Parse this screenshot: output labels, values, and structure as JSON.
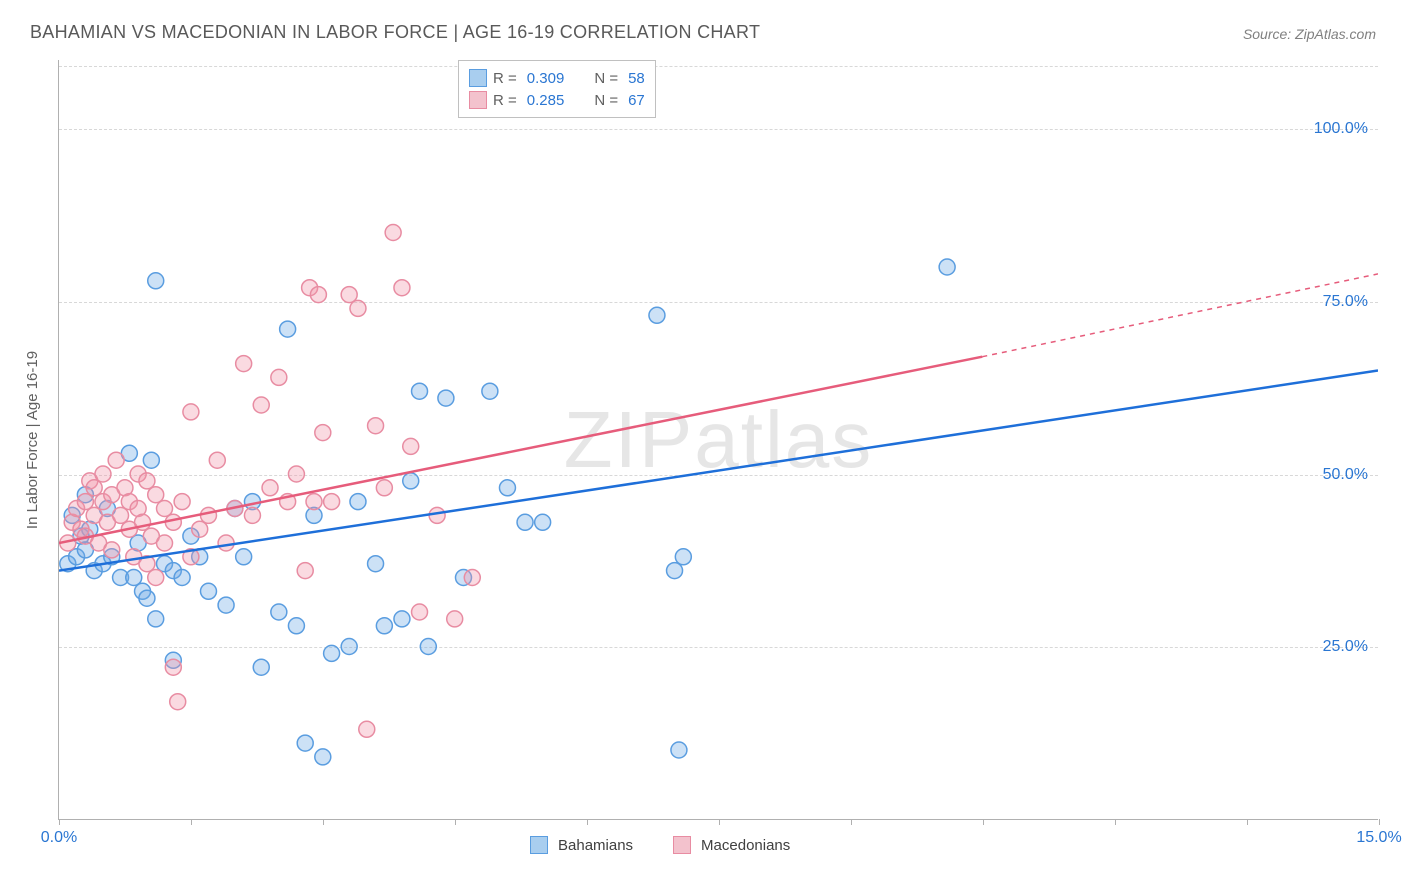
{
  "title": "BAHAMIAN VS MACEDONIAN IN LABOR FORCE | AGE 16-19 CORRELATION CHART",
  "source": "Source: ZipAtlas.com",
  "ylabel": "In Labor Force | Age 16-19",
  "watermark": "ZIPatlas",
  "chart": {
    "type": "scatter",
    "xlim": [
      0,
      15
    ],
    "ylim": [
      0,
      110
    ],
    "x_ticks": [
      0,
      1.5,
      3,
      4.5,
      6,
      7.5,
      9,
      10.5,
      12,
      13.5,
      15
    ],
    "xtick_labels": {
      "0": "0.0%",
      "15": "15.0%"
    },
    "y_gridlines": [
      {
        "v": 25,
        "label": "25.0%"
      },
      {
        "v": 50,
        "label": "50.0%"
      },
      {
        "v": 75,
        "label": "75.0%"
      },
      {
        "v": 100,
        "label": "100.0%"
      }
    ],
    "background_color": "#ffffff",
    "grid_color": "#d8d8d8",
    "marker_radius": 8,
    "series": [
      {
        "name": "Bahamians",
        "color_fill": "#a9ceef",
        "color_stroke": "#5a9de0",
        "R": "0.309",
        "N": "58",
        "trend": {
          "x1": 0,
          "y1": 36,
          "x2": 15,
          "y2": 65,
          "dash_from_x": 15,
          "color": "#1e6fd9",
          "width": 2.5
        },
        "points": [
          [
            0.1,
            37
          ],
          [
            0.15,
            44
          ],
          [
            0.2,
            38
          ],
          [
            0.25,
            41
          ],
          [
            0.3,
            39
          ],
          [
            0.35,
            42
          ],
          [
            0.3,
            47
          ],
          [
            0.4,
            36
          ],
          [
            0.5,
            37
          ],
          [
            0.55,
            45
          ],
          [
            0.6,
            38
          ],
          [
            0.7,
            35
          ],
          [
            0.8,
            53
          ],
          [
            0.85,
            35
          ],
          [
            0.9,
            40
          ],
          [
            0.95,
            33
          ],
          [
            1.0,
            32
          ],
          [
            1.05,
            52
          ],
          [
            1.1,
            29
          ],
          [
            1.1,
            78
          ],
          [
            1.2,
            37
          ],
          [
            1.3,
            23
          ],
          [
            1.3,
            36
          ],
          [
            1.4,
            35
          ],
          [
            1.5,
            41
          ],
          [
            1.6,
            38
          ],
          [
            1.7,
            33
          ],
          [
            1.9,
            31
          ],
          [
            2.0,
            45
          ],
          [
            2.1,
            38
          ],
          [
            2.2,
            46
          ],
          [
            2.3,
            22
          ],
          [
            2.5,
            30
          ],
          [
            2.6,
            71
          ],
          [
            2.7,
            28
          ],
          [
            2.8,
            11
          ],
          [
            2.9,
            44
          ],
          [
            3.0,
            9
          ],
          [
            3.1,
            24
          ],
          [
            3.3,
            25
          ],
          [
            3.4,
            46
          ],
          [
            3.6,
            37
          ],
          [
            3.7,
            28
          ],
          [
            3.9,
            29
          ],
          [
            4.0,
            49
          ],
          [
            4.1,
            62
          ],
          [
            4.2,
            25
          ],
          [
            4.4,
            61
          ],
          [
            4.6,
            35
          ],
          [
            4.9,
            62
          ],
          [
            5.1,
            48
          ],
          [
            5.3,
            43
          ],
          [
            5.5,
            43
          ],
          [
            6.8,
            73
          ],
          [
            7.0,
            36
          ],
          [
            7.05,
            10
          ],
          [
            7.1,
            38
          ],
          [
            10.1,
            80
          ]
        ]
      },
      {
        "name": "Macedonians",
        "color_fill": "#f3c2cd",
        "color_stroke": "#e88ca2",
        "R": "0.285",
        "N": "67",
        "trend": {
          "x1": 0,
          "y1": 40,
          "x2": 10.5,
          "y2": 67,
          "dash_from_x": 10.5,
          "dash_to_x": 15,
          "dash_to_y": 79,
          "color": "#e65c7b",
          "width": 2.5
        },
        "points": [
          [
            0.1,
            40
          ],
          [
            0.15,
            43
          ],
          [
            0.2,
            45
          ],
          [
            0.25,
            42
          ],
          [
            0.3,
            46
          ],
          [
            0.3,
            41
          ],
          [
            0.35,
            49
          ],
          [
            0.4,
            44
          ],
          [
            0.4,
            48
          ],
          [
            0.45,
            40
          ],
          [
            0.5,
            46
          ],
          [
            0.5,
            50
          ],
          [
            0.55,
            43
          ],
          [
            0.6,
            47
          ],
          [
            0.6,
            39
          ],
          [
            0.65,
            52
          ],
          [
            0.7,
            44
          ],
          [
            0.75,
            48
          ],
          [
            0.8,
            42
          ],
          [
            0.8,
            46
          ],
          [
            0.85,
            38
          ],
          [
            0.9,
            50
          ],
          [
            0.9,
            45
          ],
          [
            0.95,
            43
          ],
          [
            1.0,
            37
          ],
          [
            1.0,
            49
          ],
          [
            1.05,
            41
          ],
          [
            1.1,
            35
          ],
          [
            1.1,
            47
          ],
          [
            1.2,
            45
          ],
          [
            1.2,
            40
          ],
          [
            1.3,
            43
          ],
          [
            1.3,
            22
          ],
          [
            1.35,
            17
          ],
          [
            1.4,
            46
          ],
          [
            1.5,
            59
          ],
          [
            1.5,
            38
          ],
          [
            1.6,
            42
          ],
          [
            1.7,
            44
          ],
          [
            1.8,
            52
          ],
          [
            1.9,
            40
          ],
          [
            2.0,
            45
          ],
          [
            2.1,
            66
          ],
          [
            2.2,
            44
          ],
          [
            2.3,
            60
          ],
          [
            2.4,
            48
          ],
          [
            2.5,
            64
          ],
          [
            2.6,
            46
          ],
          [
            2.7,
            50
          ],
          [
            2.8,
            36
          ],
          [
            2.85,
            77
          ],
          [
            2.9,
            46
          ],
          [
            2.95,
            76
          ],
          [
            3.0,
            56
          ],
          [
            3.1,
            46
          ],
          [
            3.3,
            76
          ],
          [
            3.4,
            74
          ],
          [
            3.5,
            13
          ],
          [
            3.6,
            57
          ],
          [
            3.7,
            48
          ],
          [
            3.8,
            85
          ],
          [
            3.9,
            77
          ],
          [
            4.0,
            54
          ],
          [
            4.1,
            30
          ],
          [
            4.3,
            44
          ],
          [
            4.5,
            29
          ],
          [
            4.7,
            35
          ]
        ]
      }
    ]
  },
  "legend_bottom": [
    {
      "label": "Bahamians",
      "fill": "#a9ceef",
      "stroke": "#5a9de0"
    },
    {
      "label": "Macedonians",
      "fill": "#f3c2cd",
      "stroke": "#e88ca2"
    }
  ]
}
